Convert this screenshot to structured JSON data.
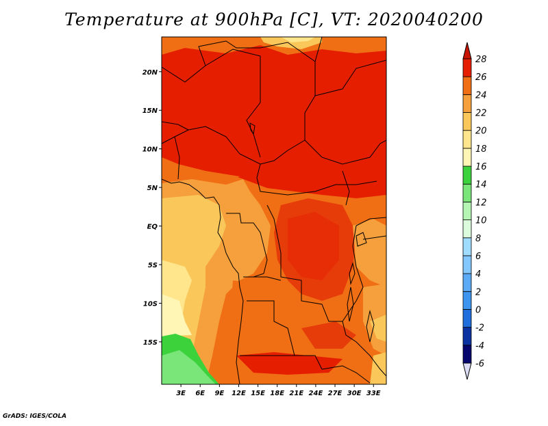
{
  "title": "Temperature at 900hPa [C], VT: 2020040200",
  "footer": "GrADS: IGES/COLA",
  "map": {
    "lat_range": [
      -20.5,
      24.5
    ],
    "lon_range": [
      0,
      35
    ],
    "lat_ticks": [
      {
        "value": 20,
        "label": "20N"
      },
      {
        "value": 15,
        "label": "15N"
      },
      {
        "value": 10,
        "label": "10N"
      },
      {
        "value": 5,
        "label": "5N"
      },
      {
        "value": 0,
        "label": "EQ"
      },
      {
        "value": -5,
        "label": "5S"
      },
      {
        "value": -10,
        "label": "10S"
      },
      {
        "value": -15,
        "label": "15S"
      }
    ],
    "lon_ticks": [
      {
        "value": 3,
        "label": "3E"
      },
      {
        "value": 6,
        "label": "6E"
      },
      {
        "value": 9,
        "label": "9E"
      },
      {
        "value": 12,
        "label": "12E"
      },
      {
        "value": 15,
        "label": "15E"
      },
      {
        "value": 18,
        "label": "18E"
      },
      {
        "value": 21,
        "label": "21E"
      },
      {
        "value": 24,
        "label": "24E"
      },
      {
        "value": 27,
        "label": "27E"
      },
      {
        "value": 30,
        "label": "30E"
      },
      {
        "value": 33,
        "label": "33E"
      }
    ]
  },
  "colorbar": {
    "levels": [
      -6,
      -4,
      -2,
      0,
      2,
      4,
      6,
      8,
      10,
      12,
      14,
      16,
      18,
      20,
      22,
      24,
      26,
      28
    ],
    "colors": [
      "#dcdcf5",
      "#06066e",
      "#0a32a0",
      "#1e6edc",
      "#3c96f0",
      "#5aaaf5",
      "#82c8ff",
      "#a0dcff",
      "#dcfadc",
      "#b4f5b4",
      "#7ae67a",
      "#3cd23c",
      "#fff5b4",
      "#ffe68c",
      "#fac85a",
      "#f5a03c",
      "#f06e14",
      "#e61e00",
      "#c81400"
    ]
  }
}
